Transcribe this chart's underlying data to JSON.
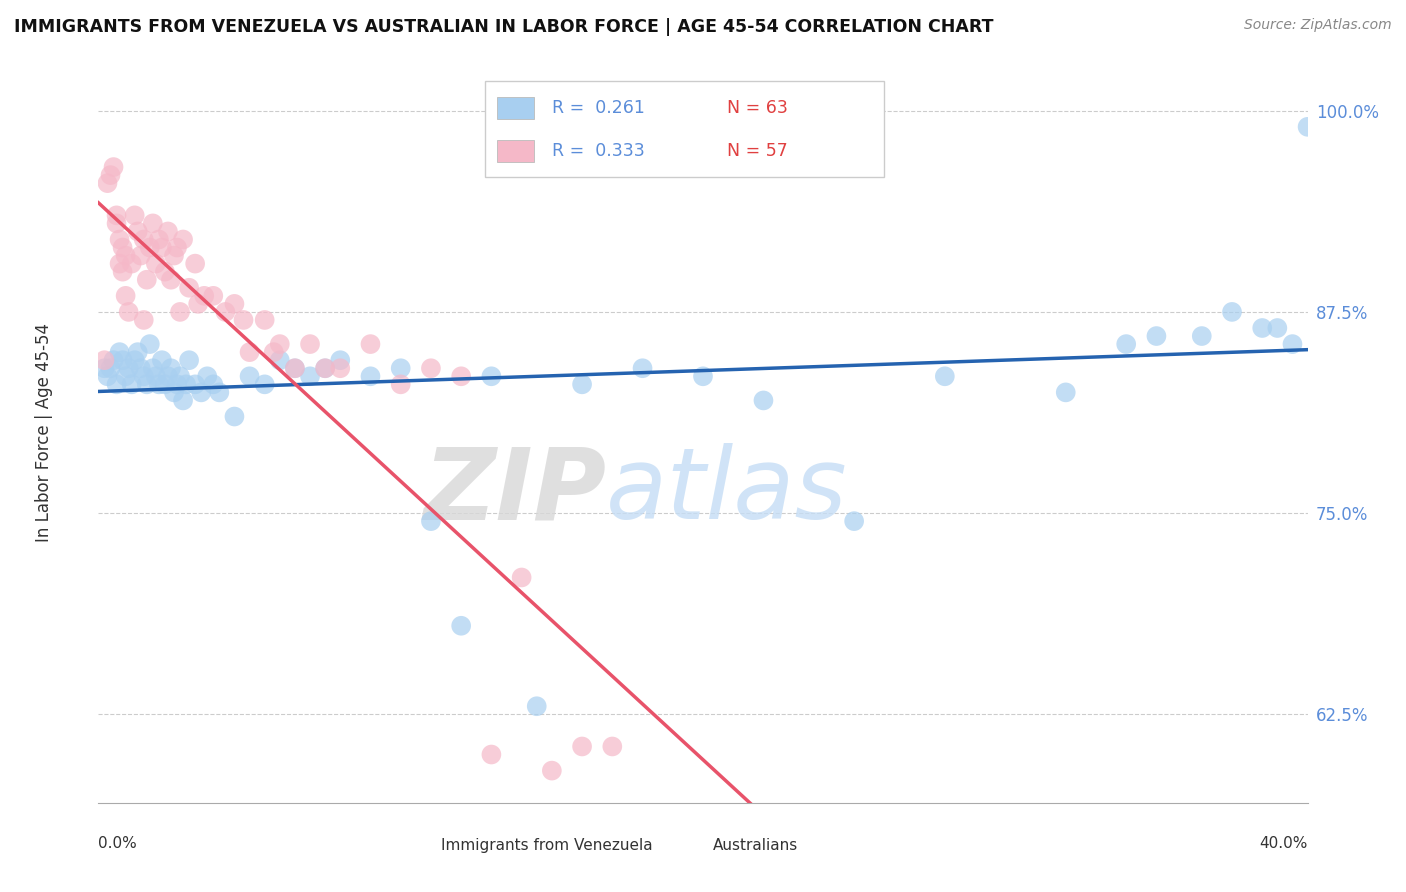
{
  "title": "IMMIGRANTS FROM VENEZUELA VS AUSTRALIAN IN LABOR FORCE | AGE 45-54 CORRELATION CHART",
  "source": "Source: ZipAtlas.com",
  "ylabel": "In Labor Force | Age 45-54",
  "y_ticks": [
    62.5,
    75.0,
    87.5,
    100.0
  ],
  "y_tick_labels": [
    "62.5%",
    "75.0%",
    "87.5%",
    "100.0%"
  ],
  "xmin": 0.0,
  "xmax": 40.0,
  "ymin": 57.0,
  "ymax": 103.0,
  "blue_R": 0.261,
  "blue_N": 63,
  "pink_R": 0.333,
  "pink_N": 57,
  "blue_color": "#a8cff0",
  "pink_color": "#f5b8c8",
  "blue_line_color": "#2563B0",
  "pink_line_color": "#E8536A",
  "blue_label": "Immigrants from Venezuela",
  "pink_label": "Australians",
  "watermark_zip": "ZIP",
  "watermark_atlas": "atlas",
  "blue_x": [
    0.2,
    0.3,
    0.4,
    0.5,
    0.6,
    0.7,
    0.8,
    0.9,
    1.0,
    1.1,
    1.2,
    1.3,
    1.4,
    1.5,
    1.6,
    1.7,
    1.8,
    1.9,
    2.0,
    2.1,
    2.2,
    2.3,
    2.4,
    2.5,
    2.6,
    2.7,
    2.8,
    2.9,
    3.0,
    3.2,
    3.4,
    3.6,
    3.8,
    4.0,
    4.5,
    5.0,
    5.5,
    6.0,
    6.5,
    7.0,
    7.5,
    8.0,
    9.0,
    10.0,
    11.0,
    12.0,
    13.0,
    14.5,
    16.0,
    18.0,
    20.0,
    22.0,
    25.0,
    28.0,
    32.0,
    35.0,
    37.5,
    39.0,
    39.5,
    40.0,
    38.5,
    36.5,
    34.0
  ],
  "blue_y": [
    84.0,
    83.5,
    84.0,
    84.5,
    83.0,
    85.0,
    84.5,
    83.5,
    84.0,
    83.0,
    84.5,
    85.0,
    84.0,
    83.5,
    83.0,
    85.5,
    84.0,
    83.5,
    83.0,
    84.5,
    83.0,
    83.5,
    84.0,
    82.5,
    83.0,
    83.5,
    82.0,
    83.0,
    84.5,
    83.0,
    82.5,
    83.5,
    83.0,
    82.5,
    81.0,
    83.5,
    83.0,
    84.5,
    84.0,
    83.5,
    84.0,
    84.5,
    83.5,
    84.0,
    74.5,
    68.0,
    83.5,
    63.0,
    83.0,
    84.0,
    83.5,
    82.0,
    74.5,
    83.5,
    82.5,
    86.0,
    87.5,
    86.5,
    85.5,
    99.0,
    86.5,
    86.0,
    85.5
  ],
  "pink_x": [
    0.2,
    0.3,
    0.4,
    0.5,
    0.6,
    0.7,
    0.8,
    0.9,
    1.0,
    1.1,
    1.2,
    1.3,
    1.4,
    1.5,
    1.6,
    1.7,
    1.8,
    1.9,
    2.0,
    2.1,
    2.2,
    2.3,
    2.4,
    2.5,
    2.6,
    2.8,
    3.0,
    3.2,
    3.5,
    3.8,
    4.2,
    4.5,
    5.0,
    5.5,
    6.0,
    6.5,
    7.0,
    7.5,
    8.0,
    9.0,
    10.0,
    11.0,
    12.0,
    13.0,
    14.0,
    15.0,
    16.0,
    17.0,
    5.8,
    4.8,
    3.3,
    2.7,
    1.5,
    0.9,
    0.8,
    0.7,
    0.6
  ],
  "pink_y": [
    84.5,
    95.5,
    96.0,
    96.5,
    93.5,
    92.0,
    90.0,
    88.5,
    87.5,
    90.5,
    93.5,
    92.5,
    91.0,
    92.0,
    89.5,
    91.5,
    93.0,
    90.5,
    92.0,
    91.5,
    90.0,
    92.5,
    89.5,
    91.0,
    91.5,
    92.0,
    89.0,
    90.5,
    88.5,
    88.5,
    87.5,
    88.0,
    85.0,
    87.0,
    85.5,
    84.0,
    85.5,
    84.0,
    84.0,
    85.5,
    83.0,
    84.0,
    83.5,
    60.0,
    71.0,
    59.0,
    60.5,
    60.5,
    85.0,
    87.0,
    88.0,
    87.5,
    87.0,
    91.0,
    91.5,
    90.5,
    93.0
  ]
}
